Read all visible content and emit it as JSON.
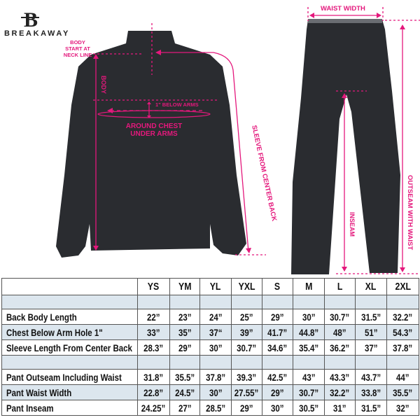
{
  "brand": {
    "name": "BREAKAWAY",
    "logo_letter": "B"
  },
  "colors": {
    "accent": "#e4187c",
    "garment": "#2a2c30",
    "table_shade": "#dce6ee"
  },
  "jacket_labels": {
    "body_start": [
      "BODY",
      "START AT",
      "NECK LINE"
    ],
    "body": "BODY",
    "below_arms": "1\" BELOW ARMS",
    "chest": [
      "AROUND CHEST",
      "UNDER ARMS"
    ],
    "sleeve": "SLEEVE FROM CENTER BACK"
  },
  "pant_labels": {
    "waist": "WAIST WIDTH",
    "inseam": "INSEAM",
    "outseam": "OUTSEAM WITH WAIST"
  },
  "size_table": {
    "sizes": [
      "YS",
      "YM",
      "YL",
      "YXL",
      "S",
      "M",
      "L",
      "XL",
      "2XL"
    ],
    "jacket_rows": [
      {
        "label": "Back Body Length",
        "values": [
          "22”",
          "23”",
          "24”",
          "25”",
          "29”",
          "30”",
          "30.7”",
          "31.5”",
          "32.2”"
        ]
      },
      {
        "label": "Chest Below Arm Hole 1\"",
        "values": [
          "33”",
          "35”",
          "37“",
          "39”",
          "41.7”",
          "44.8”",
          "48”",
          "51”",
          "54.3”"
        ]
      },
      {
        "label": "Sleeve Length From Center Back",
        "values": [
          "28.3”",
          "29”",
          "30”",
          "30.7”",
          "34.6”",
          "35.4”",
          "36.2”",
          "37”",
          "37.8”"
        ]
      }
    ],
    "pant_rows": [
      {
        "label": "Pant Outseam Including Waist",
        "values": [
          "31.8”",
          "35.5”",
          "37.8”",
          "39.3”",
          "42.5”",
          "43”",
          "43.3”",
          "43.7”",
          "44”"
        ]
      },
      {
        "label": "Pant Waist Width",
        "values": [
          "22.8”",
          "24.5”",
          "30”",
          "27.55”",
          "29”",
          "30.7”",
          "32.2”",
          "33.8”",
          "35.5”"
        ]
      },
      {
        "label": "Pant Inseam",
        "values": [
          "24.25”",
          "27”",
          "28.5”",
          "29”",
          "30”",
          "30.5”",
          "31”",
          "31.5”",
          "32”"
        ]
      }
    ]
  }
}
